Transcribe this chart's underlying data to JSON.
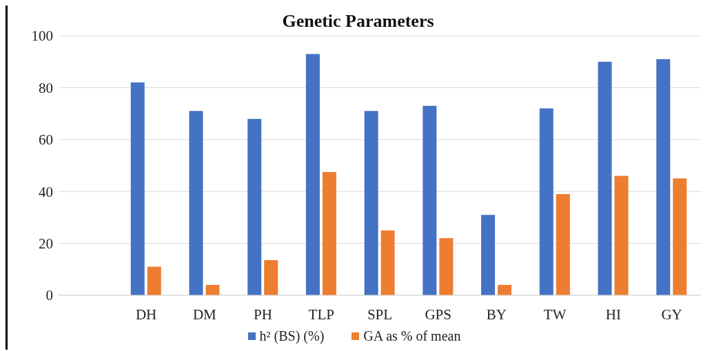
{
  "chart_data": {
    "type": "bar",
    "title": "Genetic Parameters",
    "categories": [
      null,
      "DH",
      "DM",
      "PH",
      "TLP",
      "SPL",
      "GPS",
      "BY",
      "TW",
      "HI",
      "GY"
    ],
    "series": [
      {
        "name": "h² (BS) (%)",
        "color": "#4472c4",
        "values": [
          null,
          82,
          71,
          68,
          93,
          71,
          73,
          31,
          72,
          90,
          91
        ]
      },
      {
        "name": "GA as % of mean",
        "color": "#ed7d31",
        "values": [
          null,
          11,
          4,
          13.5,
          47.5,
          25,
          22,
          4,
          39,
          46,
          45
        ]
      }
    ],
    "ylim": [
      0,
      100
    ],
    "yticks": [
      0,
      20,
      40,
      60,
      80,
      100
    ],
    "grid": "y",
    "legend": "bottom"
  }
}
